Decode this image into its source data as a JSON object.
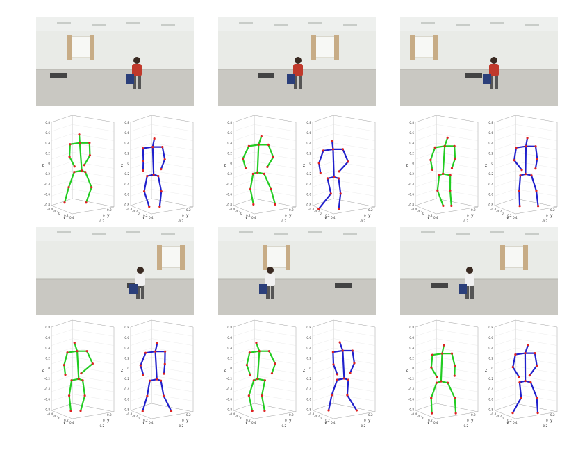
{
  "figure": {
    "panels": [
      {
        "id": "r1c1"
      },
      {
        "id": "r1c2"
      },
      {
        "id": "r1c3"
      },
      {
        "id": "r2c1"
      },
      {
        "id": "r2c2"
      },
      {
        "id": "r2c3"
      }
    ]
  },
  "plot_labels": {
    "x_axis": "x",
    "y_axis": "y",
    "z_axis": "z",
    "z_ticks": [
      "0.8",
      "0.6",
      "0.4",
      "0.2",
      "0",
      "-0.2",
      "-0.4",
      "-0.6",
      "-0.8"
    ],
    "x_ticks": [
      "-0.4",
      "-0.2",
      "0",
      "0.2",
      "0.4"
    ],
    "y_ticks": [
      "-0.2",
      "0",
      "0.2"
    ]
  },
  "colors": {
    "predicted_skeleton": "#22cc22",
    "ground_truth_skeleton": "#2020cc",
    "joint": "#dd2222",
    "axes": "#888888"
  }
}
